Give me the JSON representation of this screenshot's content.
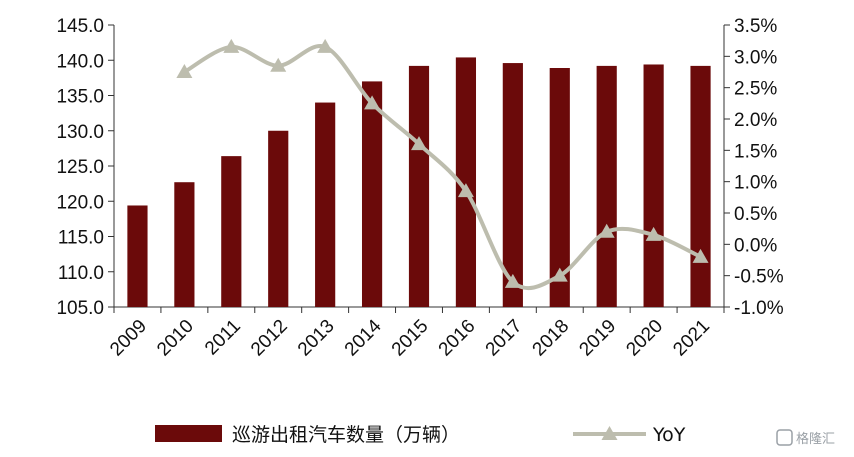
{
  "chart_data": {
    "type": "bar",
    "title": "",
    "xlabel": "",
    "ylabel": "",
    "categories": [
      "2009",
      "2010",
      "2011",
      "2012",
      "2013",
      "2014",
      "2015",
      "2016",
      "2017",
      "2018",
      "2019",
      "2020",
      "2021"
    ],
    "series": [
      {
        "name": "巡游出租汽车数量（万辆）",
        "type": "bar",
        "axis": "left",
        "color": "#6b0a0a",
        "values": [
          119.4,
          122.7,
          126.4,
          130.0,
          134.0,
          137.0,
          139.2,
          140.4,
          139.6,
          138.9,
          139.2,
          139.4,
          139.2
        ]
      },
      {
        "name": "YoY",
        "type": "line",
        "axis": "right",
        "color": "#bdbdae",
        "marker": "triangle",
        "values": [
          null,
          2.75,
          3.15,
          2.85,
          3.15,
          2.25,
          1.6,
          0.85,
          -0.6,
          -0.5,
          0.2,
          0.15,
          -0.2
        ]
      }
    ],
    "y_left": {
      "ylim": [
        105.0,
        145.0
      ],
      "ticks": [
        "105.0",
        "110.0",
        "115.0",
        "120.0",
        "125.0",
        "130.0",
        "135.0",
        "140.0",
        "145.0"
      ]
    },
    "y_right": {
      "ylim": [
        -1.0,
        3.5
      ],
      "ticks": [
        "-1.0%",
        "-0.5%",
        "0.0%",
        "0.5%",
        "1.0%",
        "1.5%",
        "2.0%",
        "2.5%",
        "3.0%",
        "3.5%"
      ]
    },
    "grid": false,
    "legend": {
      "position": "bottom",
      "entries": [
        "巡游出租汽车数量（万辆）",
        "YoY"
      ]
    }
  },
  "watermark": {
    "text": "格隆汇"
  }
}
